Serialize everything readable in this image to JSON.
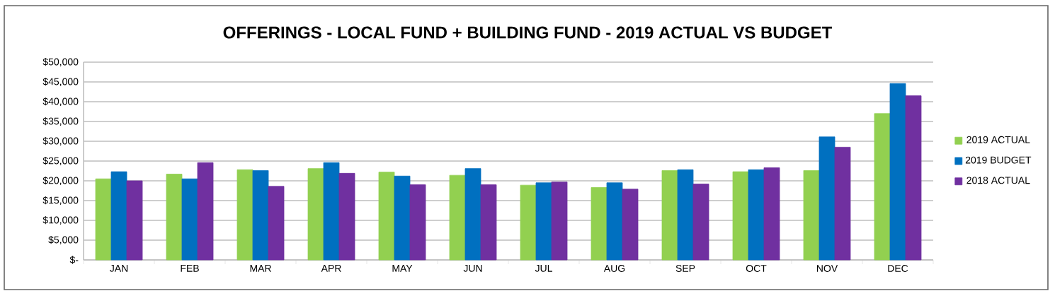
{
  "chart_data": {
    "type": "bar",
    "title": "OFFERINGS - LOCAL FUND + BUILDING FUND - 2019 ACTUAL VS BUDGET",
    "categories": [
      "JAN",
      "FEB",
      "MAR",
      "APR",
      "MAY",
      "JUN",
      "JUL",
      "AUG",
      "SEP",
      "OCT",
      "NOV",
      "DEC"
    ],
    "series": [
      {
        "name": "2019 ACTUAL",
        "color": "#92d050",
        "values": [
          20500,
          21700,
          22800,
          23100,
          22200,
          21400,
          18900,
          18300,
          22600,
          22300,
          22600,
          37000
        ]
      },
      {
        "name": "2019 BUDGET",
        "color": "#0070c0",
        "values": [
          22300,
          20500,
          22600,
          24600,
          21200,
          23100,
          19500,
          19500,
          22800,
          22800,
          31100,
          44600
        ]
      },
      {
        "name": "2018 ACTUAL",
        "color": "#7030a0",
        "values": [
          20000,
          24600,
          18600,
          21900,
          19000,
          19000,
          19700,
          17900,
          19200,
          23300,
          28500,
          41500
        ]
      }
    ],
    "ylim": [
      0,
      50000
    ],
    "yticks": [
      {
        "value": 0,
        "label": "$-"
      },
      {
        "value": 5000,
        "label": "$5,000"
      },
      {
        "value": 10000,
        "label": "$10,000"
      },
      {
        "value": 15000,
        "label": "$15,000"
      },
      {
        "value": 20000,
        "label": "$20,000"
      },
      {
        "value": 25000,
        "label": "$25,000"
      },
      {
        "value": 30000,
        "label": "$30,000"
      },
      {
        "value": 35000,
        "label": "$35,000"
      },
      {
        "value": 40000,
        "label": "$40,000"
      },
      {
        "value": 45000,
        "label": "$45,000"
      },
      {
        "value": 50000,
        "label": "$50,000"
      }
    ],
    "grid": "y",
    "legend": "right"
  }
}
